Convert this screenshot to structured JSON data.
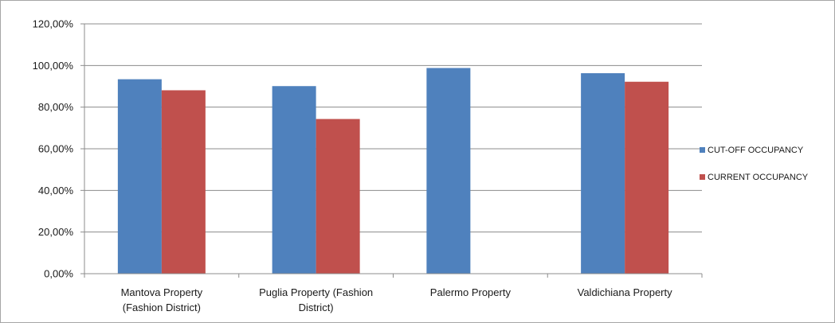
{
  "chart_data": {
    "type": "bar",
    "title": "",
    "xlabel": "",
    "ylabel": "",
    "ylim": [
      0,
      1.2
    ],
    "y_ticks": [
      "0,00%",
      "20,00%",
      "40,00%",
      "60,00%",
      "80,00%",
      "100,00%",
      "120,00%"
    ],
    "grid": true,
    "legend_position": "right",
    "categories": [
      [
        "Mantova Property",
        "(Fashion District)"
      ],
      [
        "Puglia Property (Fashion",
        "District)"
      ],
      [
        "Palermo Property"
      ],
      [
        "Valdichiana Property"
      ]
    ],
    "series": [
      {
        "name": "CUT-OFF OCCUPANCY",
        "color": "#4f81bd",
        "values": [
          0.934,
          0.901,
          0.988,
          0.963
        ]
      },
      {
        "name": "CURRENT OCCUPANCY",
        "color": "#c0504d",
        "values": [
          0.881,
          0.743,
          null,
          0.922
        ]
      }
    ]
  }
}
